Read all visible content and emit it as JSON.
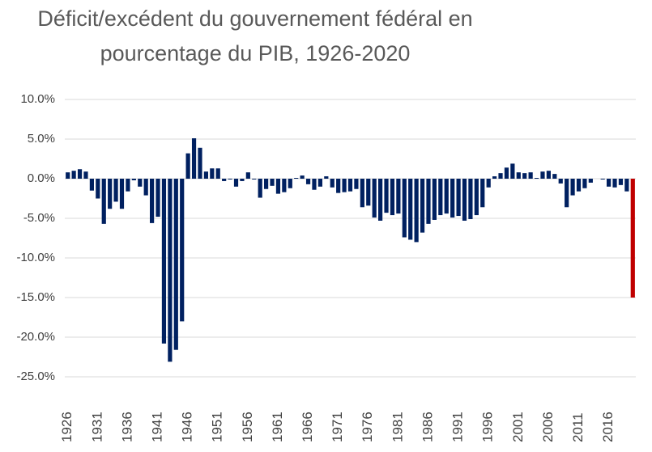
{
  "chart_data": {
    "type": "bar",
    "title": [
      "Déficit/excédent du gouvernement fédéral en",
      "pourcentage du PIB, 1926-2020"
    ],
    "categories": [
      "1926",
      null,
      null,
      null,
      null,
      "1931",
      null,
      null,
      null,
      null,
      "1936",
      null,
      null,
      null,
      null,
      "1941",
      null,
      null,
      null,
      null,
      "1946",
      null,
      null,
      null,
      null,
      "1951",
      null,
      null,
      null,
      null,
      "1956",
      null,
      null,
      null,
      null,
      "1961",
      null,
      null,
      null,
      null,
      "1966",
      null,
      null,
      null,
      null,
      "1971",
      null,
      null,
      null,
      null,
      "1976",
      null,
      null,
      null,
      null,
      "1981",
      null,
      null,
      null,
      null,
      "1986",
      null,
      null,
      null,
      null,
      "1991",
      null,
      null,
      null,
      null,
      "1996",
      null,
      null,
      null,
      null,
      "2001",
      null,
      null,
      null,
      null,
      "2006",
      null,
      null,
      null,
      null,
      "2011",
      null,
      null,
      null,
      null,
      "2016",
      null,
      null,
      null,
      null
    ],
    "values": [
      0.8,
      1.0,
      1.2,
      0.9,
      -1.5,
      -2.5,
      -5.7,
      -3.8,
      -2.9,
      -3.8,
      -1.6,
      -0.2,
      -1.0,
      -2.1,
      -5.6,
      -4.8,
      -20.8,
      -23.1,
      -21.6,
      -18.0,
      3.2,
      5.1,
      3.9,
      0.9,
      1.3,
      1.3,
      -0.3,
      -0.1,
      -1.0,
      -0.3,
      0.8,
      -0.1,
      -2.4,
      -1.3,
      -0.9,
      -1.9,
      -1.7,
      -1.2,
      0.1,
      0.4,
      -0.7,
      -1.4,
      -1.0,
      0.3,
      -1.1,
      -1.8,
      -1.7,
      -1.6,
      -1.3,
      -3.6,
      -3.4,
      -4.9,
      -5.3,
      -4.3,
      -4.6,
      -4.4,
      -7.4,
      -7.7,
      -8.0,
      -6.8,
      -5.7,
      -5.2,
      -4.6,
      -4.4,
      -4.9,
      -4.7,
      -5.3,
      -5.1,
      -4.6,
      -3.6,
      -1.1,
      0.3,
      0.7,
      1.4,
      1.9,
      0.8,
      0.7,
      0.8,
      0.1,
      0.9,
      1.0,
      0.6,
      -0.6,
      -3.6,
      -2.1,
      -1.6,
      -1.2,
      -0.5,
      0.0,
      -0.1,
      -1.0,
      -1.1,
      -0.8,
      -1.6,
      -15.0
    ],
    "colors": [
      "#002060",
      "#002060",
      "#002060",
      "#002060",
      "#002060",
      "#002060",
      "#002060",
      "#002060",
      "#002060",
      "#002060",
      "#002060",
      "#002060",
      "#002060",
      "#002060",
      "#002060",
      "#002060",
      "#002060",
      "#002060",
      "#002060",
      "#002060",
      "#002060",
      "#002060",
      "#002060",
      "#002060",
      "#002060",
      "#002060",
      "#002060",
      "#002060",
      "#002060",
      "#002060",
      "#002060",
      "#002060",
      "#002060",
      "#002060",
      "#002060",
      "#002060",
      "#002060",
      "#002060",
      "#002060",
      "#002060",
      "#002060",
      "#002060",
      "#002060",
      "#002060",
      "#002060",
      "#002060",
      "#002060",
      "#002060",
      "#002060",
      "#002060",
      "#002060",
      "#002060",
      "#002060",
      "#002060",
      "#002060",
      "#002060",
      "#002060",
      "#002060",
      "#002060",
      "#002060",
      "#002060",
      "#002060",
      "#002060",
      "#002060",
      "#002060",
      "#002060",
      "#002060",
      "#002060",
      "#002060",
      "#002060",
      "#002060",
      "#002060",
      "#002060",
      "#002060",
      "#002060",
      "#002060",
      "#002060",
      "#002060",
      "#002060",
      "#002060",
      "#002060",
      "#002060",
      "#002060",
      "#002060",
      "#002060",
      "#002060",
      "#002060",
      "#002060",
      "#002060",
      "#002060",
      "#002060",
      "#002060",
      "#002060",
      "#002060",
      "#c00000"
    ],
    "ylim": [
      -25,
      10
    ],
    "yticks": [
      {
        "value": -25,
        "label": "-25.0%"
      },
      {
        "value": -20,
        "label": "-20.0%"
      },
      {
        "value": -15,
        "label": "-15.0%"
      },
      {
        "value": -10,
        "label": "-10.0%"
      },
      {
        "value": -5,
        "label": "-5.0%"
      },
      {
        "value": 0,
        "label": "0.0%"
      },
      {
        "value": 5,
        "label": "5.0%"
      },
      {
        "value": 10,
        "label": "10.0%"
      }
    ],
    "grid": true
  }
}
